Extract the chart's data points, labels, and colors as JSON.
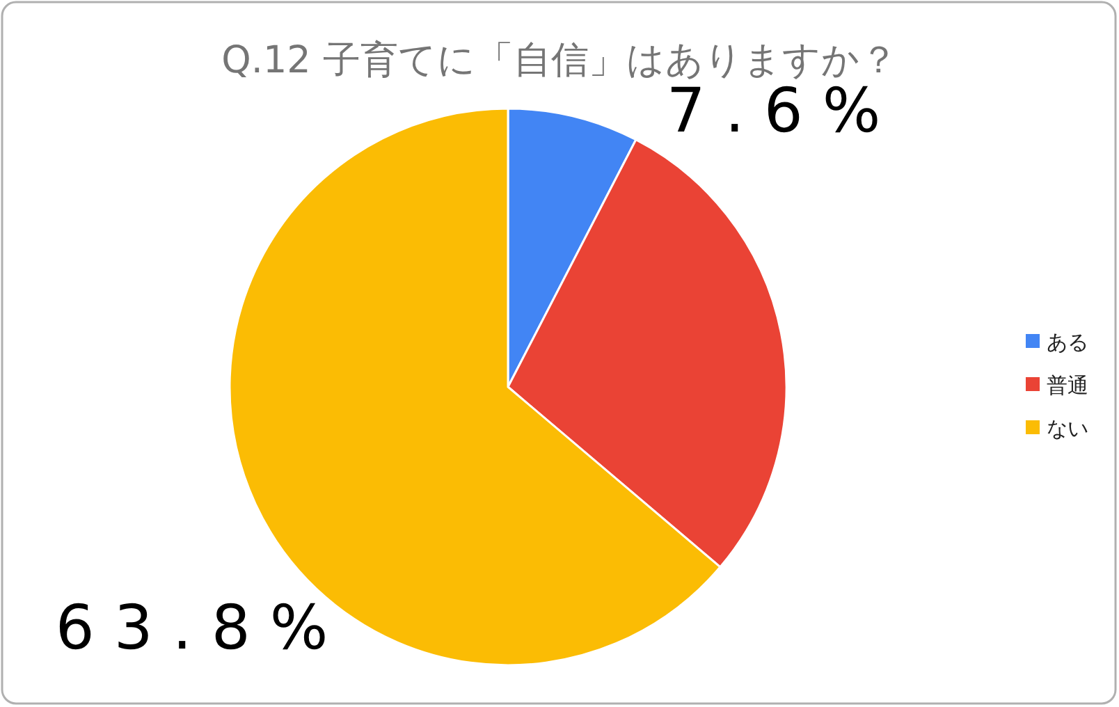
{
  "chart_data": {
    "type": "pie",
    "title": "Q.12 子育てに「自信」はありますか？",
    "categories": [
      "ある",
      "普通",
      "ない"
    ],
    "values": [
      7.6,
      28.6,
      63.8
    ],
    "colors": [
      "#4285f4",
      "#ea4335",
      "#fbbc04"
    ],
    "value_labels": [
      "7.6%",
      null,
      "63.8%"
    ],
    "legend": "right"
  }
}
